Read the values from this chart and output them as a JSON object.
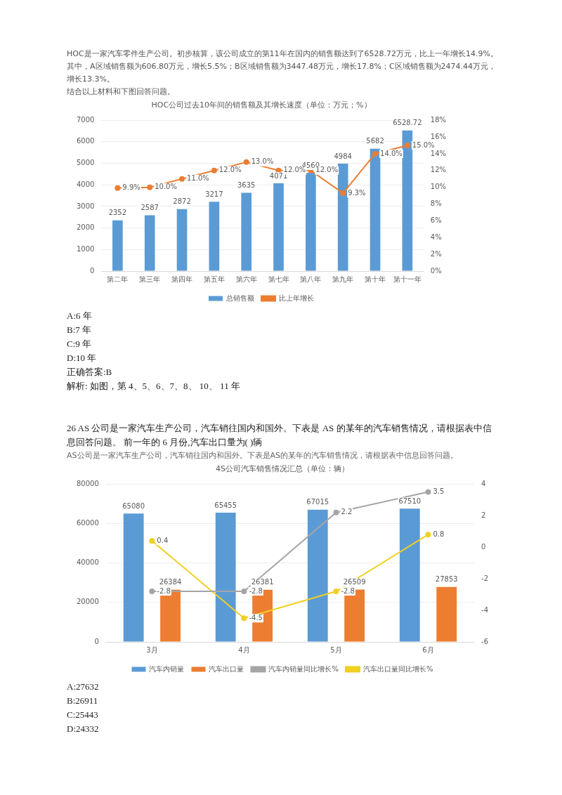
{
  "chart_data": [
    {
      "type": "bar",
      "title": "HOC公司过去10年间的销售额及其增长速度（单位：万元；%）",
      "categories": [
        "第二年",
        "第三年",
        "第四年",
        "第五年",
        "第六年",
        "第七年",
        "第八年",
        "第九年",
        "第十年",
        "第十一年"
      ],
      "series": [
        {
          "name": "总销售额",
          "color": "#5b9bd5",
          "values": [
            2352,
            2587,
            2872,
            3217,
            3635,
            4071,
            4560,
            4984,
            5682,
            6528.72
          ],
          "value_labels": [
            "2352",
            "2587",
            "2872",
            "3217",
            "3635",
            "4071",
            "4560",
            "4984",
            "5682",
            "6528.72"
          ]
        },
        {
          "name": "比上年增长",
          "type": "line",
          "axis": "y2",
          "color": "#ed7d31",
          "values": [
            9.9,
            10.0,
            11.0,
            12.0,
            13.0,
            12.0,
            12.0,
            9.3,
            14.0,
            15.0
          ],
          "value_labels": [
            "9.9%",
            "10.0%",
            "11.0%",
            "12.0%",
            "13.0%",
            "12.0%",
            "12.0%",
            "9.3%",
            "14.0%",
            "15.0%"
          ]
        }
      ],
      "ylim": [
        0,
        7000
      ],
      "yticks": [
        0,
        1000,
        2000,
        3000,
        4000,
        5000,
        6000,
        7000
      ],
      "y2lim": [
        0,
        18
      ],
      "y2ticks": [
        {
          "value": 0,
          "label": "0%"
        },
        {
          "value": 2,
          "label": "2%"
        },
        {
          "value": 4,
          "label": "4%"
        },
        {
          "value": 6,
          "label": "6%"
        },
        {
          "value": 8,
          "label": "8%"
        },
        {
          "value": 10,
          "label": "10%"
        },
        {
          "value": 12,
          "label": "12%"
        },
        {
          "value": 14,
          "label": "14%"
        },
        {
          "value": 16,
          "label": "16%"
        },
        {
          "value": 18,
          "label": "18%"
        }
      ],
      "grid": "y",
      "legend": "bottom",
      "marker": "circle",
      "annotations": [
        "HOC是一家汽车零件生产公司。初步核算，该公司成立的第11年在国内的销售额达到了6528.72万元，比上一年增长14.9%。其中，A区域销售额为606.80万元，增长5.5%；B区域销售额为3447.48万元，增长17.8%；C区域销售额为2474.44万元，增长13.3%。",
        "结合以上材料和下图回答问题。",
        "A:6 年",
        "B:7 年",
        "C:9 年",
        "D:10 年",
        "正确答案:B",
        "解析: 如图，第 4、5、6、7、8、 10、 11 年"
      ]
    },
    {
      "type": "bar",
      "title": "4S公司汽车销售情况汇总（单位：辆）",
      "categories": [
        "3月",
        "4月",
        "5月",
        "6月"
      ],
      "series": [
        {
          "name": "汽车内销量",
          "color": "#5b9bd5",
          "values": [
            65080,
            65455,
            67015,
            67510
          ],
          "value_labels": [
            "65080",
            "65455",
            "67015",
            "67510"
          ]
        },
        {
          "name": "汽车出口量",
          "color": "#ed7d31",
          "values": [
            26384,
            26381,
            26509,
            27853
          ],
          "value_labels": [
            "26384",
            "26381",
            "26509",
            "27853"
          ]
        },
        {
          "name": "汽车内销量同比增长%",
          "type": "line",
          "axis": "y2",
          "color": "#a5a5a5",
          "values": [
            -2.8,
            -2.8,
            2.2,
            3.5
          ],
          "value_labels": [
            "-2.8",
            "-2.8",
            "2.2",
            "3.5"
          ]
        },
        {
          "name": "汽车出口量同比增长%",
          "type": "line",
          "axis": "y2",
          "color": "#f0d020",
          "values": [
            0.4,
            -4.5,
            -2.8,
            0.8
          ],
          "value_labels": [
            "0.4",
            "-4.5",
            "-2.8",
            "0.8"
          ]
        }
      ],
      "ylim": [
        0,
        80000
      ],
      "yticks": [
        0,
        20000,
        40000,
        60000,
        80000
      ],
      "y2lim": [
        -6,
        4
      ],
      "y2ticks": [
        -6,
        -4,
        -2,
        0,
        2,
        4
      ],
      "grid": "y",
      "legend": "bottom",
      "marker": "circle",
      "annotations": [
        "26 AS 公司是一家汽车生产公司，汽车销往国内和国外。下表是 AS 的某年的汽车销售情况，请根据表中信息回答问题。 前一年的 6 月份,汽车出口量为( )辆",
        "AS公司是一家汽车生产公司，汽车销往国内和国外。下表是AS的某年的汽车销售情况，请根据表中信息回答问题。",
        "A:27632",
        "B:26911",
        "C:25443",
        "D:24332"
      ]
    }
  ]
}
